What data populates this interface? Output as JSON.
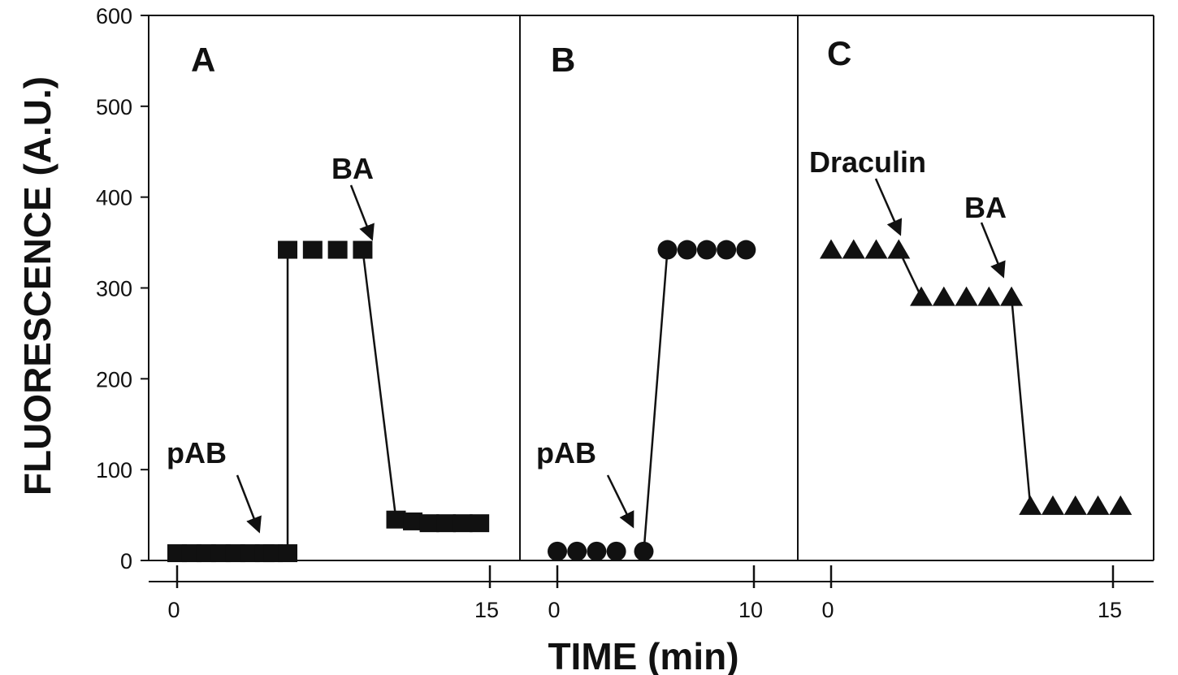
{
  "chart_data": {
    "type": "scatter",
    "ylabel": "FLUORESCENCE (A.U.)",
    "xlabel": "TIME (min)",
    "ylim": [
      0,
      600
    ],
    "yticks": [
      "0",
      "100",
      "200",
      "300",
      "400",
      "500",
      "600"
    ],
    "grid": false,
    "panels": [
      {
        "label": "A",
        "marker": "square",
        "xlim": [
          0,
          15
        ],
        "xtick_labels": [
          "0",
          "15"
        ],
        "series": [
          {
            "x": [
              0,
              0.7,
              1.4,
              2.1,
              2.8,
              3.5,
              4.2,
              4.6,
              5.3
            ],
            "y": [
              8,
              8,
              8,
              8,
              8,
              8,
              8,
              8,
              8
            ]
          },
          {
            "x": [
              5.3,
              6.5,
              7.7,
              8.9
            ],
            "y": [
              342,
              342,
              342,
              342
            ]
          },
          {
            "x": [
              10.5,
              11.3,
              12.1,
              12.9,
              13.7,
              14.5
            ],
            "y": [
              45,
              43,
              41,
              41,
              41,
              41
            ]
          }
        ],
        "annotations": [
          {
            "text": "pAB",
            "at_x": 4.4,
            "at_y": 30
          },
          {
            "text": "BA",
            "at_x": 8.9,
            "at_y": 360
          }
        ]
      },
      {
        "label": "B",
        "marker": "circle",
        "xlim": [
          0,
          10
        ],
        "xtick_labels": [
          "0",
          "10"
        ],
        "series": [
          {
            "x": [
              0,
              1,
              2,
              3,
              4.4
            ],
            "y": [
              10,
              10,
              10,
              10,
              10
            ]
          },
          {
            "x": [
              5.6,
              6.6,
              7.6,
              8.6,
              9.6
            ],
            "y": [
              342,
              342,
              342,
              342,
              342
            ]
          }
        ],
        "annotations": [
          {
            "text": "pAB",
            "at_x": 4.2,
            "at_y": 35
          }
        ]
      },
      {
        "label": "C",
        "marker": "triangle",
        "xlim": [
          0,
          15
        ],
        "xtick_labels": [
          "0",
          "15"
        ],
        "series": [
          {
            "x": [
              0,
              1.2,
              2.4,
              3.6
            ],
            "y": [
              342,
              342,
              342,
              342
            ]
          },
          {
            "x": [
              4.8,
              6,
              7.2,
              8.4,
              9.6
            ],
            "y": [
              290,
              290,
              290,
              290,
              290
            ]
          },
          {
            "x": [
              10.6,
              11.8,
              13,
              14.2,
              15.4
            ],
            "y": [
              60,
              60,
              60,
              60,
              60
            ]
          }
        ],
        "annotations": [
          {
            "text": "Draculin",
            "at_x": 3.6,
            "at_y": 360
          },
          {
            "text": "BA",
            "at_x": 9.0,
            "at_y": 310
          }
        ]
      }
    ]
  }
}
